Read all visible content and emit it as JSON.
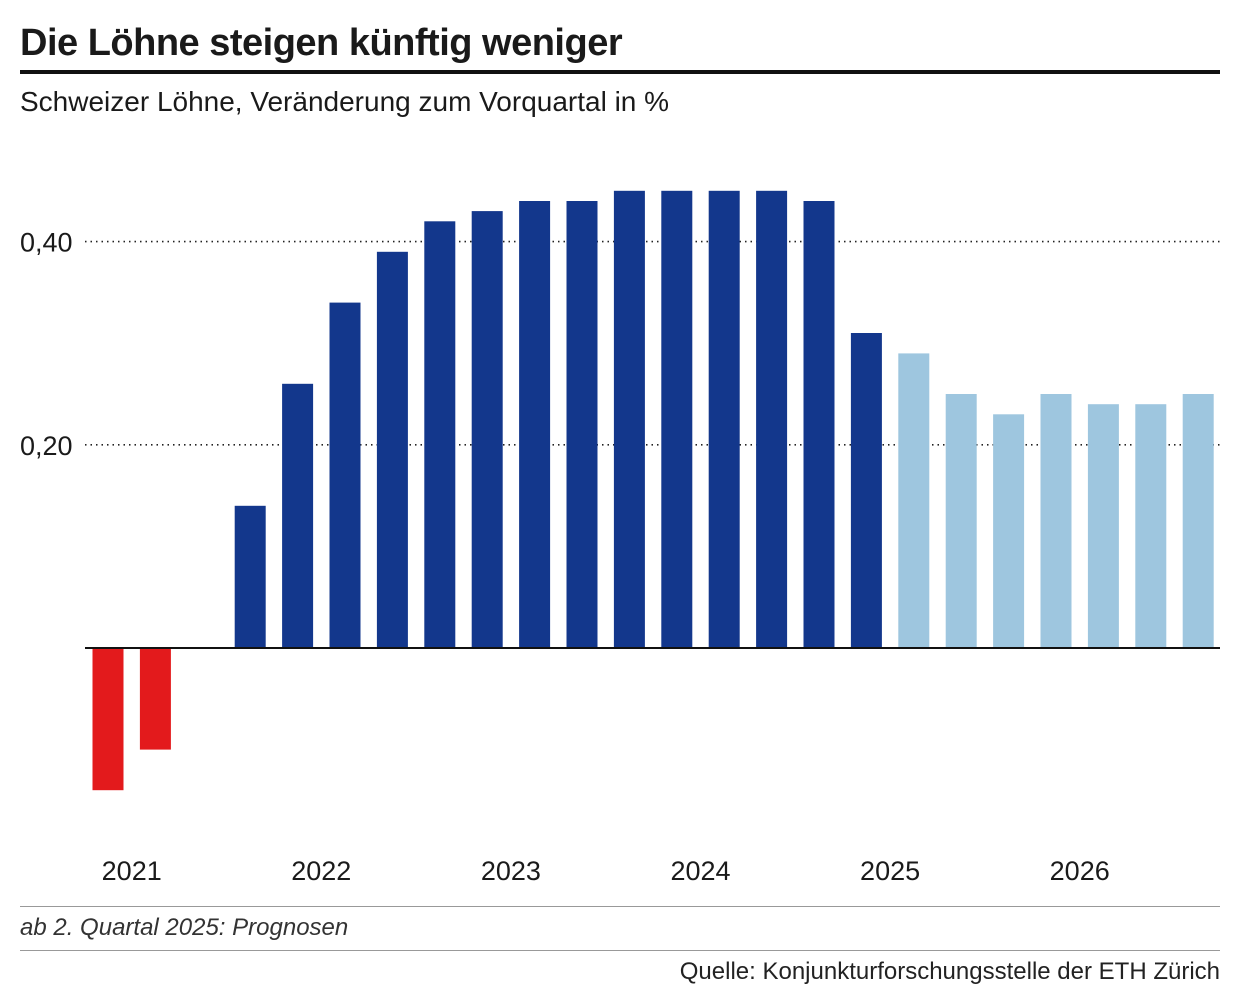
{
  "header": {
    "title": "Die Löhne steigen künftig weniger",
    "subtitle": "Schweizer Löhne, Veränderung zum Vorquartal in %"
  },
  "footer": {
    "note": "ab 2. Quartal 2025: Prognosen",
    "source": "Quelle: Konjunkturforschungsstelle der ETH Zürich"
  },
  "colors": {
    "negative": "#e31a1c",
    "actual": "#13378c",
    "forecast": "#9ec6df"
  },
  "chart_data": {
    "type": "bar",
    "title": "Die Löhne steigen künftig weniger",
    "subtitle": "Schweizer Löhne, Veränderung zum Vorquartal in %",
    "categories": [
      "2021 Q1",
      "2021 Q2",
      "2021 Q3",
      "2021 Q4",
      "2022 Q1",
      "2022 Q2",
      "2022 Q3",
      "2022 Q4",
      "2023 Q1",
      "2023 Q2",
      "2023 Q3",
      "2023 Q4",
      "2024 Q1",
      "2024 Q2",
      "2024 Q3",
      "2024 Q4",
      "2025 Q1",
      "2025 Q2",
      "2025 Q3",
      "2025 Q4",
      "2026 Q1",
      "2026 Q2",
      "2026 Q3",
      "2026 Q4"
    ],
    "values": [
      -0.14,
      -0.1,
      0,
      0.14,
      0.26,
      0.34,
      0.39,
      0.42,
      0.43,
      0.44,
      0.44,
      0.45,
      0.45,
      0.45,
      0.45,
      0.44,
      0.31,
      0.29,
      0.25,
      0.23,
      0.25,
      0.24,
      0.24,
      0.25
    ],
    "bar_kind": [
      "negative",
      "negative",
      "actual",
      "actual",
      "actual",
      "actual",
      "actual",
      "actual",
      "actual",
      "actual",
      "actual",
      "actual",
      "actual",
      "actual",
      "actual",
      "actual",
      "actual",
      "forecast",
      "forecast",
      "forecast",
      "forecast",
      "forecast",
      "forecast",
      "forecast"
    ],
    "x_tick_labels": [
      {
        "label": "2021",
        "index": 0.5
      },
      {
        "label": "2022",
        "index": 4.5
      },
      {
        "label": "2023",
        "index": 8.5
      },
      {
        "label": "2024",
        "index": 12.5
      },
      {
        "label": "2025",
        "index": 16.5
      },
      {
        "label": "2026",
        "index": 20.5
      }
    ],
    "y_ticks": [
      {
        "value": 0.2,
        "label": "0,20"
      },
      {
        "value": 0.4,
        "label": "0,40"
      }
    ],
    "ylim": [
      -0.2,
      0.5
    ],
    "grid": "dotted horizontal at y ticks",
    "xlabel": "",
    "ylabel": ""
  }
}
